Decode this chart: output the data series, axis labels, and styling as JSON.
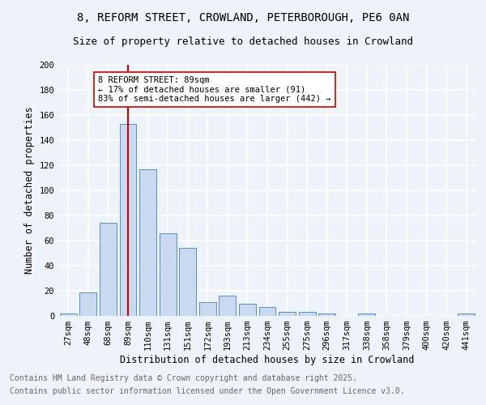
{
  "title1": "8, REFORM STREET, CROWLAND, PETERBOROUGH, PE6 0AN",
  "title2": "Size of property relative to detached houses in Crowland",
  "xlabel": "Distribution of detached houses by size in Crowland",
  "ylabel": "Number of detached properties",
  "categories": [
    "27sqm",
    "48sqm",
    "68sqm",
    "89sqm",
    "110sqm",
    "131sqm",
    "151sqm",
    "172sqm",
    "193sqm",
    "213sqm",
    "234sqm",
    "255sqm",
    "275sqm",
    "296sqm",
    "317sqm",
    "338sqm",
    "358sqm",
    "379sqm",
    "400sqm",
    "420sqm",
    "441sqm"
  ],
  "values": [
    2,
    19,
    74,
    153,
    117,
    66,
    54,
    11,
    16,
    10,
    7,
    3,
    3,
    2,
    0,
    2,
    0,
    0,
    0,
    0,
    2
  ],
  "bar_color": "#c8d9f0",
  "bar_edge_color": "#5a8fc2",
  "vline_x_idx": 3,
  "vline_color": "#cc0000",
  "annotation_text": "8 REFORM STREET: 89sqm\n← 17% of detached houses are smaller (91)\n83% of semi-detached houses are larger (442) →",
  "annotation_box_color": "#ffffff",
  "annotation_box_edge": "#cc0000",
  "ylim": [
    0,
    200
  ],
  "yticks": [
    0,
    20,
    40,
    60,
    80,
    100,
    120,
    140,
    160,
    180,
    200
  ],
  "footnote1": "Contains HM Land Registry data © Crown copyright and database right 2025.",
  "footnote2": "Contains public sector information licensed under the Open Government Licence v3.0.",
  "bg_color": "#eef2f9",
  "grid_color": "#ffffff",
  "title_fontsize": 10,
  "subtitle_fontsize": 9,
  "axis_label_fontsize": 8.5,
  "tick_fontsize": 7.5,
  "annotation_fontsize": 7.5,
  "footnote_fontsize": 7.0
}
